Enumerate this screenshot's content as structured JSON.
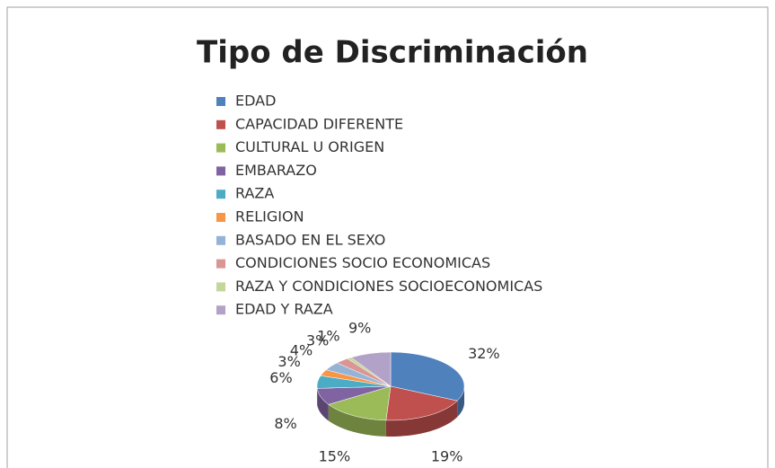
{
  "chart_data": {
    "type": "pie",
    "title": "Tipo de Discriminación",
    "categories": [
      "EDAD",
      "CAPACIDAD DIFERENTE",
      "CULTURAL U ORIGEN",
      "EMBARAZO",
      "RAZA",
      "RELIGION",
      "BASADO EN EL SEXO",
      "CONDICIONES SOCIO ECONOMICAS",
      "RAZA Y CONDICIONES SOCIOECONOMICAS",
      "EDAD Y RAZA"
    ],
    "values": [
      32,
      19,
      15,
      8,
      6,
      3,
      4,
      3,
      1,
      9
    ],
    "value_labels": [
      "32%",
      "19%",
      "15%",
      "8%",
      "6%",
      "3%",
      "4%",
      "3%",
      "1%",
      "9%"
    ],
    "colors": [
      "#4f81bd",
      "#c0504d",
      "#9bbb59",
      "#8064a2",
      "#4bacc6",
      "#f79646",
      "#95b3d7",
      "#d99694",
      "#c3d69b",
      "#b3a2c7"
    ],
    "legend": "top"
  }
}
